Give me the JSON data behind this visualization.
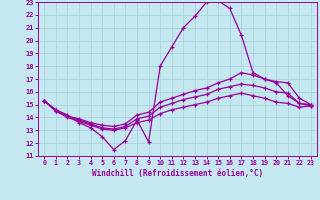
{
  "xlabel": "Windchill (Refroidissement éolien,°C)",
  "xlim": [
    -0.5,
    23.5
  ],
  "ylim": [
    11,
    23
  ],
  "yticks": [
    11,
    12,
    13,
    14,
    15,
    16,
    17,
    18,
    19,
    20,
    21,
    22,
    23
  ],
  "xticks": [
    0,
    1,
    2,
    3,
    4,
    5,
    6,
    7,
    8,
    9,
    10,
    11,
    12,
    13,
    14,
    15,
    16,
    17,
    18,
    19,
    20,
    21,
    22,
    23
  ],
  "bg_color": "#c5e8f0",
  "line_color": "#990099",
  "grid_color": "#a8d4de",
  "line1_x": [
    0,
    1,
    2,
    3,
    4,
    5,
    6,
    7,
    8,
    9,
    10,
    11,
    12,
    13,
    14,
    15,
    16,
    17,
    18,
    19,
    20,
    21,
    22,
    23
  ],
  "line1_y": [
    15.3,
    14.6,
    14.2,
    13.6,
    13.2,
    12.5,
    11.5,
    12.2,
    13.8,
    12.1,
    18.0,
    19.5,
    21.0,
    21.9,
    23.0,
    23.1,
    22.5,
    20.4,
    17.5,
    17.0,
    16.7,
    15.7,
    15.1,
    14.9
  ],
  "line2_x": [
    0,
    1,
    2,
    3,
    4,
    5,
    6,
    7,
    8,
    9,
    10,
    11,
    12,
    13,
    14,
    15,
    16,
    17,
    18,
    19,
    20,
    21,
    22,
    23
  ],
  "line2_y": [
    15.3,
    14.6,
    14.1,
    13.9,
    13.6,
    13.4,
    13.3,
    13.5,
    14.2,
    14.4,
    15.2,
    15.5,
    15.8,
    16.1,
    16.3,
    16.7,
    17.0,
    17.5,
    17.3,
    17.0,
    16.8,
    16.7,
    15.5,
    15.0
  ],
  "line3_x": [
    0,
    1,
    2,
    3,
    4,
    5,
    6,
    7,
    8,
    9,
    10,
    11,
    12,
    13,
    14,
    15,
    16,
    17,
    18,
    19,
    20,
    21,
    22,
    23
  ],
  "line3_y": [
    15.3,
    14.5,
    14.1,
    13.8,
    13.5,
    13.2,
    13.1,
    13.3,
    13.9,
    14.1,
    14.8,
    15.1,
    15.4,
    15.6,
    15.8,
    16.2,
    16.4,
    16.6,
    16.5,
    16.3,
    16.0,
    15.9,
    15.1,
    15.0
  ],
  "line4_x": [
    0,
    1,
    2,
    3,
    4,
    5,
    6,
    7,
    8,
    9,
    10,
    11,
    12,
    13,
    14,
    15,
    16,
    17,
    18,
    19,
    20,
    21,
    22,
    23
  ],
  "line4_y": [
    15.3,
    14.5,
    14.0,
    13.7,
    13.4,
    13.1,
    13.0,
    13.2,
    13.6,
    13.8,
    14.3,
    14.6,
    14.8,
    15.0,
    15.2,
    15.5,
    15.7,
    15.9,
    15.7,
    15.5,
    15.2,
    15.1,
    14.8,
    14.9
  ]
}
